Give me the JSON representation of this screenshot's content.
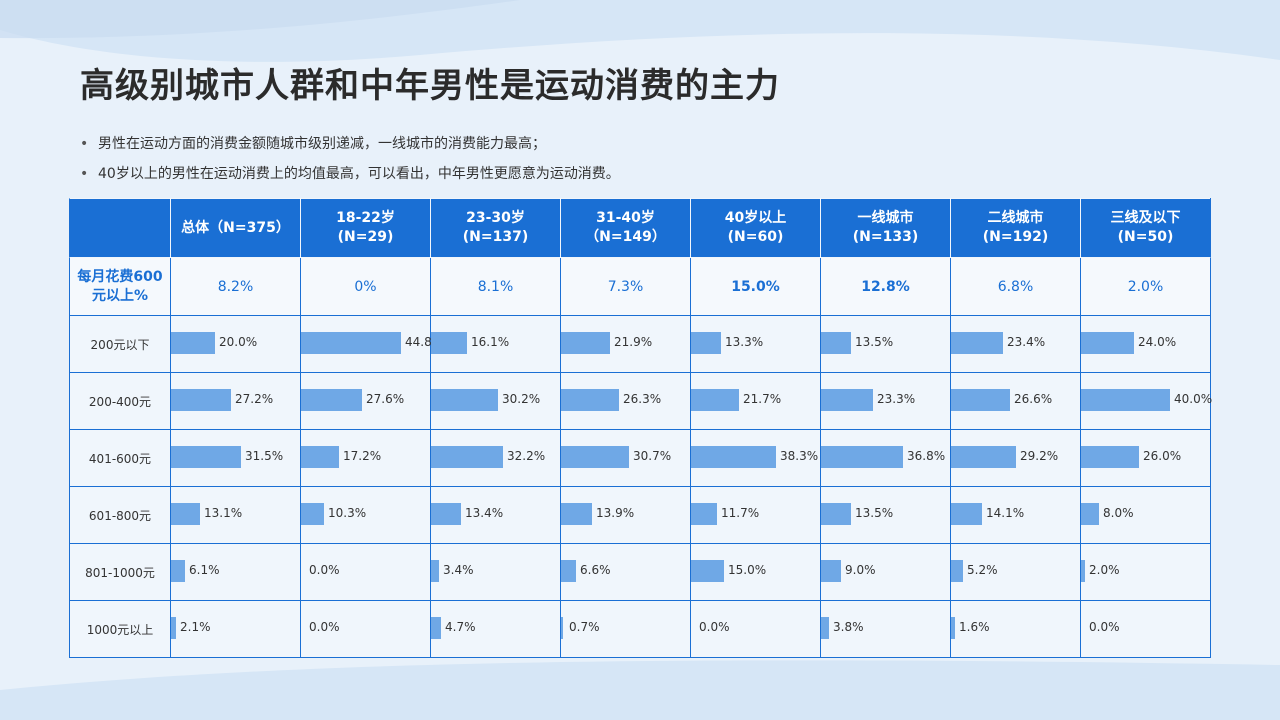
{
  "title": "高级别城市人群和中年男性是运动消费的主力",
  "bullets": [
    "男性在运动方面的消费金额随城市级别递减，一线城市的消费能力最高；",
    "40岁以上的男性在运动消费上的均值最高，可以看出，中年男性更愿意为运动消费。"
  ],
  "colors": {
    "accent": "#1a6fd4",
    "bar": "#6fa8e6"
  },
  "chart_data": {
    "type": "table",
    "columns": [
      "",
      "总体（N=375）",
      "18-22岁\n(N=29)",
      "23-30岁\n(N=137)",
      "31-40岁（N=149）",
      "40岁以上\n(N=60)",
      "一线城市\n(N=133)",
      "二线城市\n(N=192)",
      "三线及以下\n(N=50)"
    ],
    "highlight_row": {
      "label": "每月花费600\n元以上%",
      "values": [
        "8.2%",
        "0%",
        "8.1%",
        "7.3%",
        "15.0%",
        "12.8%",
        "6.8%",
        "2.0%"
      ],
      "bold": [
        false,
        false,
        false,
        false,
        true,
        true,
        false,
        false
      ]
    },
    "rows": [
      {
        "label": "200元以下",
        "values": [
          20.0,
          44.8,
          16.1,
          21.9,
          13.3,
          13.5,
          23.4,
          24.0
        ]
      },
      {
        "label": "200-400元",
        "values": [
          27.2,
          27.6,
          30.2,
          26.3,
          21.7,
          23.3,
          26.6,
          40.0
        ]
      },
      {
        "label": "401-600元",
        "values": [
          31.5,
          17.2,
          32.2,
          30.7,
          38.3,
          36.8,
          29.2,
          26.0
        ]
      },
      {
        "label": "601-800元",
        "values": [
          13.1,
          10.3,
          13.4,
          13.9,
          11.7,
          13.5,
          14.1,
          8.0
        ]
      },
      {
        "label": "801-1000元",
        "values": [
          6.1,
          0.0,
          3.4,
          6.6,
          15.0,
          9.0,
          5.2,
          2.0
        ]
      },
      {
        "label": "1000元以上",
        "values": [
          2.1,
          0.0,
          4.7,
          0.7,
          0.0,
          3.8,
          1.6,
          0.0
        ]
      }
    ],
    "bar_max": 45
  }
}
